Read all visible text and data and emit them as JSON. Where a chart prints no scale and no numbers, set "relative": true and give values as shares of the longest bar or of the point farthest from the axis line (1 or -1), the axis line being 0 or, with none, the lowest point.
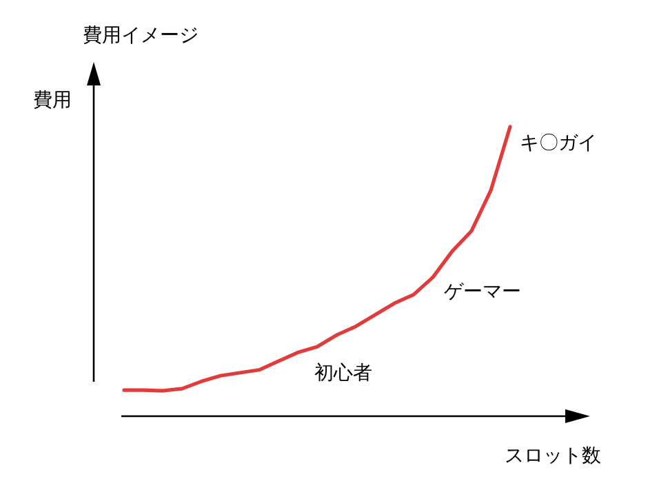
{
  "chart_data": {
    "type": "line",
    "title": "費用イメージ",
    "ylabel": "費用",
    "xlabel": "スロット数",
    "relative": true,
    "categories": [
      null,
      null,
      null,
      null,
      null,
      null,
      null,
      null,
      null,
      null,
      null,
      null,
      null,
      null,
      null,
      null,
      null,
      null,
      null,
      null,
      null
    ],
    "series": [
      {
        "color": "#e03c3c",
        "values": [
          0.09,
          0.09,
          0.088,
          0.095,
          0.12,
          0.14,
          0.15,
          0.16,
          0.19,
          0.22,
          0.24,
          0.28,
          0.31,
          0.35,
          0.39,
          0.42,
          0.48,
          0.57,
          0.64,
          0.78,
          1
        ]
      }
    ],
    "annotations": [
      "初心者",
      "ゲーマー",
      "キ〇ガイ"
    ]
  }
}
